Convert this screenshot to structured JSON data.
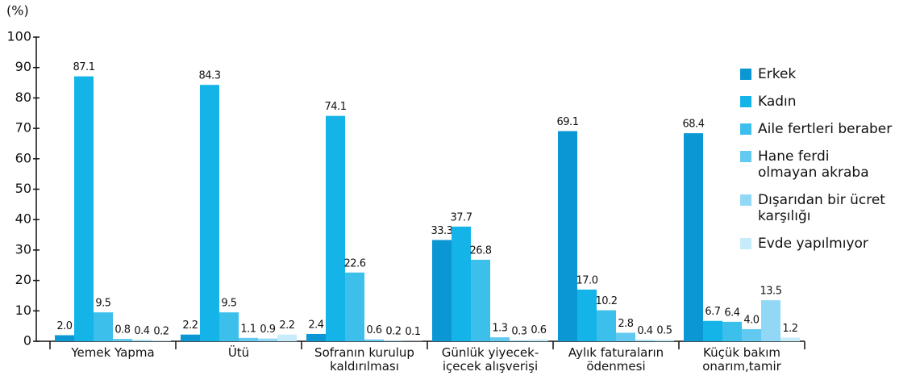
{
  "chart_data": {
    "type": "bar",
    "ylabel": "(%)",
    "categories": [
      "Yemek Yapma",
      "Ütü",
      "Sofranın kurulup kaldırılması",
      "Günlük yiyecek-içecek alışverişi",
      "Aylık faturaların ödenmesi",
      "Küçük bakım onarım,tamir"
    ],
    "series": [
      {
        "name": "Erkek",
        "color": "#0a97d4",
        "values": [
          2.0,
          2.2,
          2.4,
          33.3,
          69.1,
          68.4
        ],
        "value_labels": [
          "2.0",
          "2.2",
          "2.4",
          "33.3",
          "69.1",
          "68.4"
        ]
      },
      {
        "name": "Kadın",
        "color": "#14b4e8",
        "values": [
          87.1,
          84.3,
          74.1,
          37.7,
          17.0,
          6.7
        ],
        "value_labels": [
          "87.1",
          "84.3",
          "74.1",
          "37.7",
          "17.0",
          "6.7"
        ]
      },
      {
        "name": "Aile fertleri beraber",
        "color": "#3dbfec",
        "values": [
          9.5,
          9.5,
          22.6,
          26.8,
          10.2,
          6.4
        ],
        "value_labels": [
          "9.5",
          "9.5",
          "22.6",
          "26.8",
          "10.2",
          "6.4"
        ]
      },
      {
        "name": "Hane ferdi olmayan akraba",
        "color": "#62c9f0",
        "values": [
          0.8,
          1.1,
          0.6,
          1.3,
          2.8,
          4.0
        ],
        "value_labels": [
          "0.8",
          "1.1",
          "0.6",
          "1.3",
          "2.8",
          "4.0"
        ]
      },
      {
        "name": "Dışarıdan bir ücret karşılığı",
        "color": "#90d8f5",
        "values": [
          0.4,
          0.9,
          0.2,
          0.3,
          0.4,
          13.5
        ],
        "value_labels": [
          "0.4",
          "0.9",
          "0.2",
          "0.3",
          "0.4",
          "13.5"
        ]
      },
      {
        "name": "Evde yapılmıyor",
        "color": "#c6ebf9",
        "values": [
          0.2,
          2.2,
          0.1,
          0.6,
          0.5,
          1.2
        ],
        "value_labels": [
          "0.2",
          "2.2",
          "0.1",
          "0.6",
          "0.5",
          "1.2"
        ]
      }
    ],
    "ylim": [
      0,
      100
    ],
    "yticks": [
      0,
      10,
      20,
      30,
      40,
      50,
      60,
      70,
      80,
      90,
      100
    ],
    "legend": "right"
  }
}
